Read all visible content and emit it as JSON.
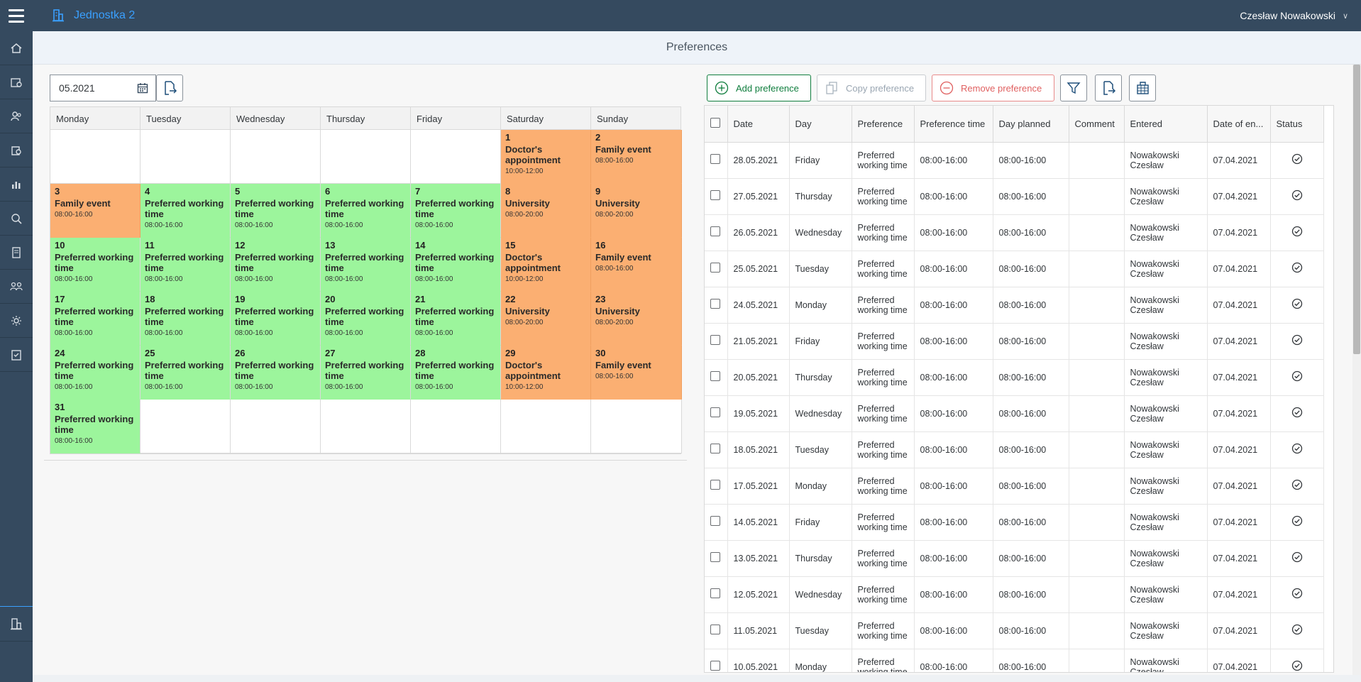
{
  "header": {
    "unit_name": "Jednostka 2",
    "user_name": "Czesław Nowakowski"
  },
  "page_title": "Preferences",
  "month_input": {
    "value": "05.2021"
  },
  "toolbar": {
    "add_label": "Add preference",
    "copy_label": "Copy preference",
    "remove_label": "Remove preference"
  },
  "calendar": {
    "weekdays": [
      "Monday",
      "Tuesday",
      "Wednesday",
      "Thursday",
      "Friday",
      "Saturday",
      "Sunday"
    ],
    "cells": [
      {
        "day": "",
        "name": "",
        "time": "",
        "color": ""
      },
      {
        "day": "",
        "name": "",
        "time": "",
        "color": ""
      },
      {
        "day": "",
        "name": "",
        "time": "",
        "color": ""
      },
      {
        "day": "",
        "name": "",
        "time": "",
        "color": ""
      },
      {
        "day": "",
        "name": "",
        "time": "",
        "color": ""
      },
      {
        "day": "1",
        "name": "Doctor's appointment",
        "time": "10:00-12:00",
        "color": "orange"
      },
      {
        "day": "2",
        "name": "Family event",
        "time": "08:00-16:00",
        "color": "orange"
      },
      {
        "day": "3",
        "name": "Family event",
        "time": "08:00-16:00",
        "color": "orange"
      },
      {
        "day": "4",
        "name": "Preferred working time",
        "time": "08:00-16:00",
        "color": "green"
      },
      {
        "day": "5",
        "name": "Preferred working time",
        "time": "08:00-16:00",
        "color": "green"
      },
      {
        "day": "6",
        "name": "Preferred working time",
        "time": "08:00-16:00",
        "color": "green"
      },
      {
        "day": "7",
        "name": "Preferred working time",
        "time": "08:00-16:00",
        "color": "green"
      },
      {
        "day": "8",
        "name": "University",
        "time": "08:00-20:00",
        "color": "orange"
      },
      {
        "day": "9",
        "name": "University",
        "time": "08:00-20:00",
        "color": "orange"
      },
      {
        "day": "10",
        "name": "Preferred working time",
        "time": "08:00-16:00",
        "color": "green"
      },
      {
        "day": "11",
        "name": "Preferred working time",
        "time": "08:00-16:00",
        "color": "green"
      },
      {
        "day": "12",
        "name": "Preferred working time",
        "time": "08:00-16:00",
        "color": "green"
      },
      {
        "day": "13",
        "name": "Preferred working time",
        "time": "08:00-16:00",
        "color": "green"
      },
      {
        "day": "14",
        "name": "Preferred working time",
        "time": "08:00-16:00",
        "color": "green"
      },
      {
        "day": "15",
        "name": "Doctor's appointment",
        "time": "10:00-12:00",
        "color": "orange"
      },
      {
        "day": "16",
        "name": "Family event",
        "time": "08:00-16:00",
        "color": "orange"
      },
      {
        "day": "17",
        "name": "Preferred working time",
        "time": "08:00-16:00",
        "color": "green"
      },
      {
        "day": "18",
        "name": "Preferred working time",
        "time": "08:00-16:00",
        "color": "green"
      },
      {
        "day": "19",
        "name": "Preferred working time",
        "time": "08:00-16:00",
        "color": "green"
      },
      {
        "day": "20",
        "name": "Preferred working time",
        "time": "08:00-16:00",
        "color": "green"
      },
      {
        "day": "21",
        "name": "Preferred working time",
        "time": "08:00-16:00",
        "color": "green"
      },
      {
        "day": "22",
        "name": "University",
        "time": "08:00-20:00",
        "color": "orange"
      },
      {
        "day": "23",
        "name": "University",
        "time": "08:00-20:00",
        "color": "orange"
      },
      {
        "day": "24",
        "name": "Preferred working time",
        "time": "08:00-16:00",
        "color": "green"
      },
      {
        "day": "25",
        "name": "Preferred working time",
        "time": "08:00-16:00",
        "color": "green"
      },
      {
        "day": "26",
        "name": "Preferred working time",
        "time": "08:00-16:00",
        "color": "green"
      },
      {
        "day": "27",
        "name": "Preferred working time",
        "time": "08:00-16:00",
        "color": "green"
      },
      {
        "day": "28",
        "name": "Preferred working time",
        "time": "08:00-16:00",
        "color": "green"
      },
      {
        "day": "29",
        "name": "Doctor's appointment",
        "time": "10:00-12:00",
        "color": "orange"
      },
      {
        "day": "30",
        "name": "Family event",
        "time": "08:00-16:00",
        "color": "orange"
      },
      {
        "day": "31",
        "name": "Preferred working time",
        "time": "08:00-16:00",
        "color": "green"
      },
      {
        "day": "",
        "name": "",
        "time": "",
        "color": ""
      },
      {
        "day": "",
        "name": "",
        "time": "",
        "color": ""
      },
      {
        "day": "",
        "name": "",
        "time": "",
        "color": ""
      },
      {
        "day": "",
        "name": "",
        "time": "",
        "color": ""
      },
      {
        "day": "",
        "name": "",
        "time": "",
        "color": ""
      },
      {
        "day": "",
        "name": "",
        "time": "",
        "color": ""
      }
    ]
  },
  "table": {
    "columns": [
      "Date",
      "Day",
      "Preference",
      "Preference time",
      "Day planned",
      "Comment",
      "Entered",
      "Date of en...",
      "Status"
    ],
    "rows": [
      {
        "date": "28.05.2021",
        "day": "Friday",
        "preference": "Preferred working time",
        "pref_time": "08:00-16:00",
        "day_planned": "08:00-16:00",
        "comment": "",
        "entered": "Nowakowski Czesław",
        "date_entered": "07.04.2021"
      },
      {
        "date": "27.05.2021",
        "day": "Thursday",
        "preference": "Preferred working time",
        "pref_time": "08:00-16:00",
        "day_planned": "08:00-16:00",
        "comment": "",
        "entered": "Nowakowski Czesław",
        "date_entered": "07.04.2021"
      },
      {
        "date": "26.05.2021",
        "day": "Wednesday",
        "preference": "Preferred working time",
        "pref_time": "08:00-16:00",
        "day_planned": "08:00-16:00",
        "comment": "",
        "entered": "Nowakowski Czesław",
        "date_entered": "07.04.2021"
      },
      {
        "date": "25.05.2021",
        "day": "Tuesday",
        "preference": "Preferred working time",
        "pref_time": "08:00-16:00",
        "day_planned": "08:00-16:00",
        "comment": "",
        "entered": "Nowakowski Czesław",
        "date_entered": "07.04.2021"
      },
      {
        "date": "24.05.2021",
        "day": "Monday",
        "preference": "Preferred working time",
        "pref_time": "08:00-16:00",
        "day_planned": "08:00-16:00",
        "comment": "",
        "entered": "Nowakowski Czesław",
        "date_entered": "07.04.2021"
      },
      {
        "date": "21.05.2021",
        "day": "Friday",
        "preference": "Preferred working time",
        "pref_time": "08:00-16:00",
        "day_planned": "08:00-16:00",
        "comment": "",
        "entered": "Nowakowski Czesław",
        "date_entered": "07.04.2021"
      },
      {
        "date": "20.05.2021",
        "day": "Thursday",
        "preference": "Preferred working time",
        "pref_time": "08:00-16:00",
        "day_planned": "08:00-16:00",
        "comment": "",
        "entered": "Nowakowski Czesław",
        "date_entered": "07.04.2021"
      },
      {
        "date": "19.05.2021",
        "day": "Wednesday",
        "preference": "Preferred working time",
        "pref_time": "08:00-16:00",
        "day_planned": "08:00-16:00",
        "comment": "",
        "entered": "Nowakowski Czesław",
        "date_entered": "07.04.2021"
      },
      {
        "date": "18.05.2021",
        "day": "Tuesday",
        "preference": "Preferred working time",
        "pref_time": "08:00-16:00",
        "day_planned": "08:00-16:00",
        "comment": "",
        "entered": "Nowakowski Czesław",
        "date_entered": "07.04.2021"
      },
      {
        "date": "17.05.2021",
        "day": "Monday",
        "preference": "Preferred working time",
        "pref_time": "08:00-16:00",
        "day_planned": "08:00-16:00",
        "comment": "",
        "entered": "Nowakowski Czesław",
        "date_entered": "07.04.2021"
      },
      {
        "date": "14.05.2021",
        "day": "Friday",
        "preference": "Preferred working time",
        "pref_time": "08:00-16:00",
        "day_planned": "08:00-16:00",
        "comment": "",
        "entered": "Nowakowski Czesław",
        "date_entered": "07.04.2021"
      },
      {
        "date": "13.05.2021",
        "day": "Thursday",
        "preference": "Preferred working time",
        "pref_time": "08:00-16:00",
        "day_planned": "08:00-16:00",
        "comment": "",
        "entered": "Nowakowski Czesław",
        "date_entered": "07.04.2021"
      },
      {
        "date": "12.05.2021",
        "day": "Wednesday",
        "preference": "Preferred working time",
        "pref_time": "08:00-16:00",
        "day_planned": "08:00-16:00",
        "comment": "",
        "entered": "Nowakowski Czesław",
        "date_entered": "07.04.2021"
      },
      {
        "date": "11.05.2021",
        "day": "Tuesday",
        "preference": "Preferred working time",
        "pref_time": "08:00-16:00",
        "day_planned": "08:00-16:00",
        "comment": "",
        "entered": "Nowakowski Czesław",
        "date_entered": "07.04.2021"
      },
      {
        "date": "10.05.2021",
        "day": "Monday",
        "preference": "Preferred working time",
        "pref_time": "08:00-16:00",
        "day_planned": "08:00-16:00",
        "comment": "",
        "entered": "Nowakowski Czesław",
        "date_entered": "07.04.2021"
      }
    ]
  },
  "colors": {
    "green": "#9cf59c",
    "orange": "#fbaf72",
    "shell": "#354a5f",
    "accent": "#3aa0ff"
  },
  "icons": {
    "status": "check-circle-icon"
  }
}
